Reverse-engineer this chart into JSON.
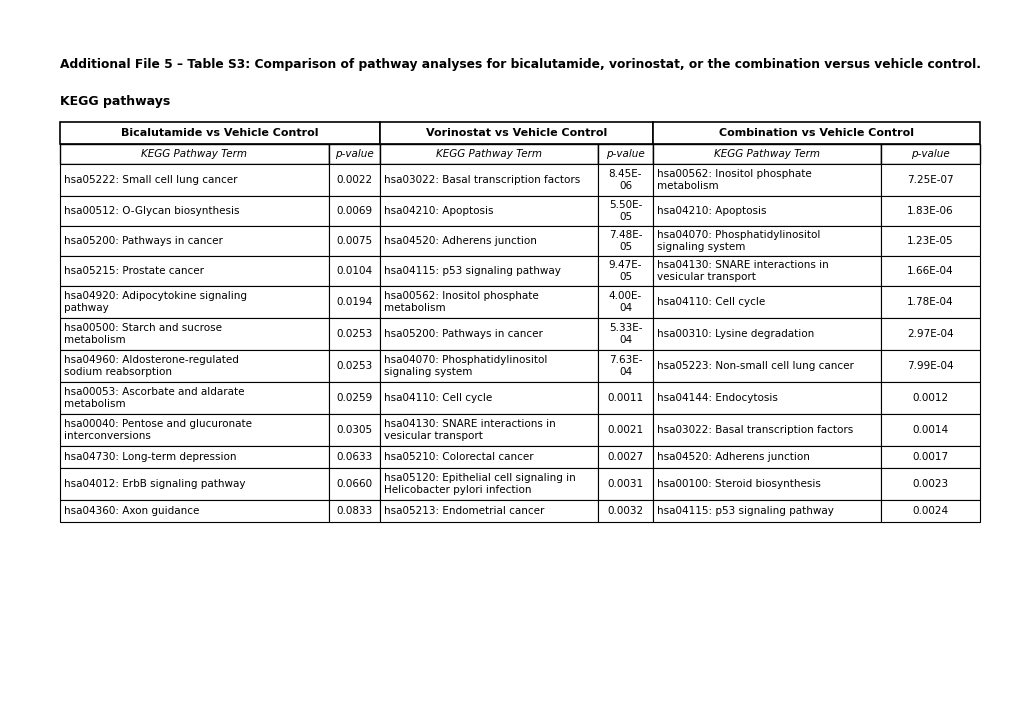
{
  "title": "Additional File 5 – Table S3: Comparison of pathway analyses for bicalutamide, vorinostat, or the combination versus vehicle control.",
  "subtitle": "KEGG pathways",
  "col_headers": [
    "Bicalutamide vs Vehicle Control",
    "Vorinostat vs Vehicle Control",
    "Combination vs Vehicle Control"
  ],
  "rows": [
    {
      "bical_term": "hsa05222: Small cell lung cancer",
      "bical_pval": "0.0022",
      "vorin_term": "hsa03022: Basal transcription factors",
      "vorin_pval": "8.45E-\n06",
      "combo_term": "hsa00562: Inositol phosphate\nmetabolism",
      "combo_pval": "7.25E-07"
    },
    {
      "bical_term": "hsa00512: O-Glycan biosynthesis",
      "bical_pval": "0.0069",
      "vorin_term": "hsa04210: Apoptosis",
      "vorin_pval": "5.50E-\n05",
      "combo_term": "hsa04210: Apoptosis",
      "combo_pval": "1.83E-06"
    },
    {
      "bical_term": "hsa05200: Pathways in cancer",
      "bical_pval": "0.0075",
      "vorin_term": "hsa04520: Adherens junction",
      "vorin_pval": "7.48E-\n05",
      "combo_term": "hsa04070: Phosphatidylinositol\nsignaling system",
      "combo_pval": "1.23E-05"
    },
    {
      "bical_term": "hsa05215: Prostate cancer",
      "bical_pval": "0.0104",
      "vorin_term": "hsa04115: p53 signaling pathway",
      "vorin_pval": "9.47E-\n05",
      "combo_term": "hsa04130: SNARE interactions in\nvesicular transport",
      "combo_pval": "1.66E-04"
    },
    {
      "bical_term": "hsa04920: Adipocytokine signaling\npathway",
      "bical_pval": "0.0194",
      "vorin_term": "hsa00562: Inositol phosphate\nmetabolism",
      "vorin_pval": "4.00E-\n04",
      "combo_term": "hsa04110: Cell cycle",
      "combo_pval": "1.78E-04"
    },
    {
      "bical_term": "hsa00500: Starch and sucrose\nmetabolism",
      "bical_pval": "0.0253",
      "vorin_term": "hsa05200: Pathways in cancer",
      "vorin_pval": "5.33E-\n04",
      "combo_term": "hsa00310: Lysine degradation",
      "combo_pval": "2.97E-04"
    },
    {
      "bical_term": "hsa04960: Aldosterone-regulated\nsodium reabsorption",
      "bical_pval": "0.0253",
      "vorin_term": "hsa04070: Phosphatidylinositol\nsignaling system",
      "vorin_pval": "7.63E-\n04",
      "combo_term": "hsa05223: Non-small cell lung cancer",
      "combo_pval": "7.99E-04"
    },
    {
      "bical_term": "hsa00053: Ascorbate and aldarate\nmetabolism",
      "bical_pval": "0.0259",
      "vorin_term": "hsa04110: Cell cycle",
      "vorin_pval": "0.0011",
      "combo_term": "hsa04144: Endocytosis",
      "combo_pval": "0.0012"
    },
    {
      "bical_term": "hsa00040: Pentose and glucuronate\ninterconversions",
      "bical_pval": "0.0305",
      "vorin_term": "hsa04130: SNARE interactions in\nvesicular transport",
      "vorin_pval": "0.0021",
      "combo_term": "hsa03022: Basal transcription factors",
      "combo_pval": "0.0014"
    },
    {
      "bical_term": "hsa04730: Long-term depression",
      "bical_pval": "0.0633",
      "vorin_term": "hsa05210: Colorectal cancer",
      "vorin_pval": "0.0027",
      "combo_term": "hsa04520: Adherens junction",
      "combo_pval": "0.0017"
    },
    {
      "bical_term": "hsa04012: ErbB signaling pathway",
      "bical_pval": "0.0660",
      "vorin_term": "hsa05120: Epithelial cell signaling in\nHelicobacter pylori infection",
      "vorin_pval": "0.0031",
      "combo_term": "hsa00100: Steroid biosynthesis",
      "combo_pval": "0.0023"
    },
    {
      "bical_term": "hsa04360: Axon guidance",
      "bical_pval": "0.0833",
      "vorin_term": "hsa05213: Endometrial cancer",
      "vorin_pval": "0.0032",
      "combo_term": "hsa04115: p53 signaling pathway",
      "combo_pval": "0.0024"
    }
  ],
  "background_color": "#ffffff",
  "text_color": "#000000"
}
